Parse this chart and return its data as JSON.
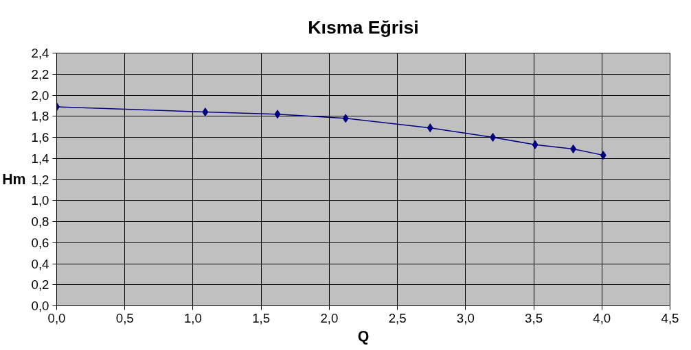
{
  "chart_data": {
    "type": "line",
    "title": "Kısma Eğrisi",
    "xlabel": "Q",
    "ylabel": "Hm",
    "x": [
      0.0,
      1.09,
      1.62,
      2.12,
      2.74,
      3.2,
      3.51,
      3.79,
      4.01
    ],
    "series": [
      {
        "color": "#000080",
        "values": [
          1.89,
          1.84,
          1.82,
          1.78,
          1.69,
          1.6,
          1.53,
          1.49,
          1.43
        ]
      }
    ],
    "xlim": [
      0,
      4.5
    ],
    "ylim": [
      0,
      2.4
    ],
    "xticks": [
      {
        "value": 0,
        "label": "0,0"
      },
      {
        "value": 0.5,
        "label": "0,5"
      },
      {
        "value": 1,
        "label": "1,0"
      },
      {
        "value": 1.5,
        "label": "1,5"
      },
      {
        "value": 2,
        "label": "2,0"
      },
      {
        "value": 2.5,
        "label": "2,5"
      },
      {
        "value": 3,
        "label": "3,0"
      },
      {
        "value": 3.5,
        "label": "3,5"
      },
      {
        "value": 4,
        "label": "4,0"
      },
      {
        "value": 4.5,
        "label": "4,5"
      }
    ],
    "yticks": [
      {
        "value": 0,
        "label": "0,0"
      },
      {
        "value": 0.2,
        "label": "0,2"
      },
      {
        "value": 0.4,
        "label": "0,4"
      },
      {
        "value": 0.6,
        "label": "0,6"
      },
      {
        "value": 0.8,
        "label": "0,8"
      },
      {
        "value": 1.0,
        "label": "1,0"
      },
      {
        "value": 1.2,
        "label": "1,2"
      },
      {
        "value": 1.4,
        "label": "1,4"
      },
      {
        "value": 1.6,
        "label": "1,6"
      },
      {
        "value": 1.8,
        "label": "1,8"
      },
      {
        "value": 2.0,
        "label": "2,0"
      },
      {
        "value": 2.2,
        "label": "2,2"
      },
      {
        "value": 2.4,
        "label": "2,4"
      }
    ],
    "grid": true,
    "marker": "diamond",
    "line_style": "solid"
  }
}
